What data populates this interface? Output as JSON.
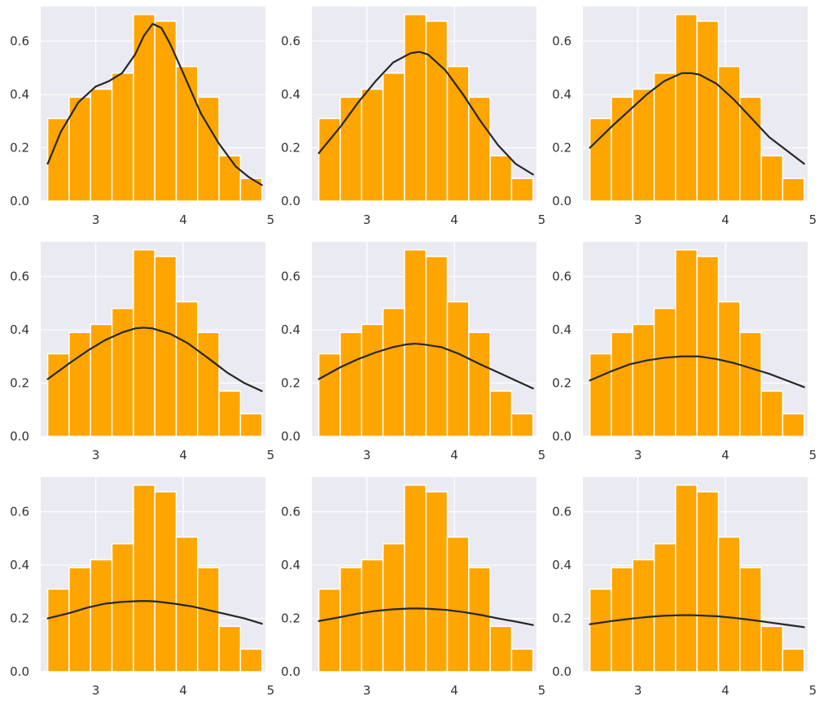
{
  "chart_data": {
    "type": "bar",
    "layout": {
      "rows": 3,
      "cols": 3
    },
    "colors": {
      "bar_fill": "#ffa500",
      "bar_edge": "#ffffff",
      "axes_bg": "#eaeaf2",
      "grid": "#ffffff",
      "curve": "#262626"
    },
    "grid": true,
    "xlim": [
      2.37,
      4.94
    ],
    "ylim": [
      0,
      0.73
    ],
    "xticks": [
      3,
      4,
      5
    ],
    "yticks": [
      0.0,
      0.2,
      0.4,
      0.6
    ],
    "xtick_labels": [
      "3",
      "4",
      "5"
    ],
    "ytick_labels": [
      "0.0",
      "0.2",
      "0.4",
      "0.6"
    ],
    "histogram": {
      "bin_edges": [
        2.45,
        2.695,
        2.94,
        3.185,
        3.43,
        3.675,
        3.92,
        4.165,
        4.41,
        4.655,
        4.9
      ],
      "density": [
        0.31,
        0.39,
        0.42,
        0.48,
        0.7,
        0.675,
        0.505,
        0.39,
        0.17,
        0.085
      ]
    },
    "panels": [
      {
        "curve": {
          "x": [
            2.45,
            2.6,
            2.8,
            3.0,
            3.15,
            3.3,
            3.45,
            3.55,
            3.65,
            3.75,
            3.85,
            4.0,
            4.2,
            4.4,
            4.6,
            4.75,
            4.9
          ],
          "y": [
            0.14,
            0.26,
            0.37,
            0.43,
            0.45,
            0.48,
            0.55,
            0.62,
            0.665,
            0.65,
            0.59,
            0.48,
            0.33,
            0.22,
            0.13,
            0.09,
            0.06
          ]
        }
      },
      {
        "curve": {
          "x": [
            2.45,
            2.7,
            2.9,
            3.1,
            3.3,
            3.5,
            3.6,
            3.7,
            3.9,
            4.1,
            4.3,
            4.5,
            4.7,
            4.9
          ],
          "y": [
            0.18,
            0.28,
            0.37,
            0.45,
            0.52,
            0.555,
            0.56,
            0.55,
            0.49,
            0.4,
            0.3,
            0.21,
            0.14,
            0.1
          ]
        }
      },
      {
        "curve": {
          "x": [
            2.45,
            2.7,
            2.9,
            3.1,
            3.3,
            3.5,
            3.6,
            3.7,
            3.9,
            4.1,
            4.3,
            4.5,
            4.7,
            4.9
          ],
          "y": [
            0.2,
            0.28,
            0.34,
            0.4,
            0.45,
            0.48,
            0.48,
            0.475,
            0.44,
            0.38,
            0.31,
            0.24,
            0.19,
            0.14
          ]
        }
      },
      {
        "curve": {
          "x": [
            2.45,
            2.7,
            2.9,
            3.1,
            3.3,
            3.45,
            3.55,
            3.65,
            3.85,
            4.05,
            4.3,
            4.5,
            4.7,
            4.9
          ],
          "y": [
            0.215,
            0.275,
            0.32,
            0.36,
            0.39,
            0.405,
            0.408,
            0.405,
            0.385,
            0.35,
            0.29,
            0.24,
            0.2,
            0.17
          ]
        }
      },
      {
        "curve": {
          "x": [
            2.45,
            2.7,
            2.9,
            3.1,
            3.3,
            3.45,
            3.55,
            3.65,
            3.85,
            4.05,
            4.3,
            4.5,
            4.7,
            4.9
          ],
          "y": [
            0.215,
            0.26,
            0.29,
            0.315,
            0.335,
            0.345,
            0.348,
            0.345,
            0.335,
            0.31,
            0.27,
            0.24,
            0.21,
            0.18
          ]
        }
      },
      {
        "curve": {
          "x": [
            2.45,
            2.7,
            2.9,
            3.1,
            3.3,
            3.5,
            3.6,
            3.7,
            3.9,
            4.1,
            4.3,
            4.5,
            4.7,
            4.9
          ],
          "y": [
            0.21,
            0.245,
            0.27,
            0.285,
            0.295,
            0.3,
            0.3,
            0.3,
            0.29,
            0.275,
            0.255,
            0.235,
            0.21,
            0.185
          ]
        }
      },
      {
        "curve": {
          "x": [
            2.45,
            2.7,
            2.9,
            3.1,
            3.3,
            3.5,
            3.6,
            3.7,
            3.9,
            4.1,
            4.3,
            4.5,
            4.7,
            4.9
          ],
          "y": [
            0.2,
            0.22,
            0.24,
            0.255,
            0.262,
            0.265,
            0.265,
            0.263,
            0.255,
            0.245,
            0.23,
            0.215,
            0.2,
            0.18
          ]
        }
      },
      {
        "curve": {
          "x": [
            2.45,
            2.7,
            2.9,
            3.1,
            3.3,
            3.5,
            3.6,
            3.7,
            3.9,
            4.1,
            4.3,
            4.5,
            4.7,
            4.9
          ],
          "y": [
            0.19,
            0.205,
            0.218,
            0.228,
            0.234,
            0.237,
            0.237,
            0.236,
            0.232,
            0.224,
            0.213,
            0.2,
            0.188,
            0.175
          ]
        }
      },
      {
        "curve": {
          "x": [
            2.45,
            2.7,
            2.9,
            3.1,
            3.3,
            3.5,
            3.6,
            3.7,
            3.9,
            4.1,
            4.3,
            4.5,
            4.7,
            4.9
          ],
          "y": [
            0.178,
            0.19,
            0.198,
            0.205,
            0.21,
            0.212,
            0.212,
            0.211,
            0.208,
            0.202,
            0.194,
            0.185,
            0.176,
            0.167
          ]
        }
      }
    ]
  }
}
